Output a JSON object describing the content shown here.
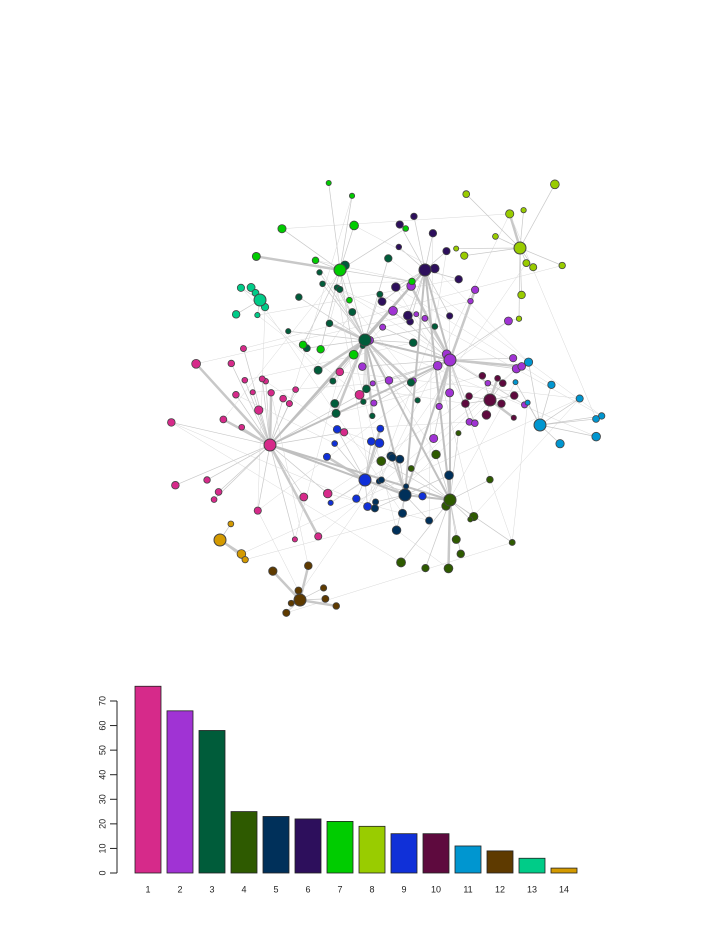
{
  "chart_data": {
    "type": "bar",
    "categories": [
      "1",
      "2",
      "3",
      "4",
      "5",
      "6",
      "7",
      "8",
      "9",
      "10",
      "11",
      "12",
      "13",
      "14"
    ],
    "values": [
      76,
      66,
      58,
      25,
      23,
      22,
      21,
      19,
      16,
      16,
      11,
      9,
      6,
      2
    ],
    "colors": [
      "#d62a8a",
      "#a033d4",
      "#005c3a",
      "#2e5a00",
      "#00305a",
      "#2d0f5c",
      "#00cc00",
      "#99cc00",
      "#1030d8",
      "#5e0a3e",
      "#0096d0",
      "#5e3a00",
      "#00cc88",
      "#d49a00"
    ],
    "ylim": [
      0,
      76
    ],
    "yticks": [
      0,
      10,
      20,
      30,
      40,
      50,
      60,
      70
    ]
  }
}
